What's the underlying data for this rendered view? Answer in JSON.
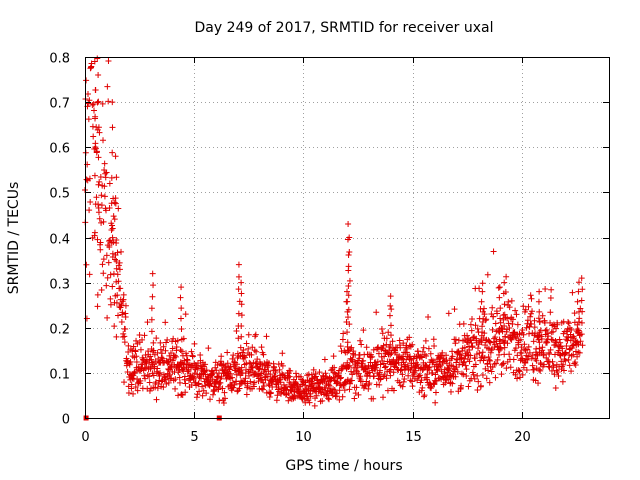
{
  "chart_data": {
    "type": "scatter",
    "title": "Day 249 of 2017, SRMTID for receiver uxal",
    "xlabel": "GPS time / hours",
    "ylabel": "SRMTID / TECUs",
    "xlim": [
      0,
      24
    ],
    "ylim": [
      0,
      0.8
    ],
    "x_ticks": [
      0,
      5,
      10,
      15,
      20
    ],
    "x_tick_labels": [
      "0",
      "5",
      "10",
      "15",
      "20"
    ],
    "y_ticks": [
      0,
      0.1,
      0.2,
      0.3,
      0.4,
      0.5,
      0.6,
      0.7,
      0.8
    ],
    "y_tick_labels": [
      "0",
      "0.1",
      "0.2",
      "0.3",
      "0.4",
      "0.5",
      "0.6",
      "0.7",
      "0.8"
    ],
    "grid": true,
    "marker_color": "#e00000",
    "axis_markers": [
      {
        "x": 0.05,
        "y": 0
      },
      {
        "x": 6.15,
        "y": 0
      }
    ],
    "envelope": [
      {
        "x": 0.0,
        "y": 0.58
      },
      {
        "x": 0.3,
        "y": 0.7
      },
      {
        "x": 0.6,
        "y": 0.55
      },
      {
        "x": 1.0,
        "y": 0.45
      },
      {
        "x": 1.5,
        "y": 0.3
      },
      {
        "x": 2.0,
        "y": 0.12
      },
      {
        "x": 3.0,
        "y": 0.11
      },
      {
        "x": 4.0,
        "y": 0.12
      },
      {
        "x": 5.0,
        "y": 0.1
      },
      {
        "x": 6.0,
        "y": 0.08
      },
      {
        "x": 7.0,
        "y": 0.1
      },
      {
        "x": 8.0,
        "y": 0.1
      },
      {
        "x": 9.0,
        "y": 0.08
      },
      {
        "x": 10.0,
        "y": 0.06
      },
      {
        "x": 11.0,
        "y": 0.07
      },
      {
        "x": 12.0,
        "y": 0.1
      },
      {
        "x": 13.0,
        "y": 0.11
      },
      {
        "x": 14.0,
        "y": 0.13
      },
      {
        "x": 15.0,
        "y": 0.12
      },
      {
        "x": 16.0,
        "y": 0.1
      },
      {
        "x": 17.0,
        "y": 0.12
      },
      {
        "x": 18.0,
        "y": 0.15
      },
      {
        "x": 19.0,
        "y": 0.17
      },
      {
        "x": 20.0,
        "y": 0.17
      },
      {
        "x": 21.0,
        "y": 0.16
      },
      {
        "x": 22.0,
        "y": 0.15
      },
      {
        "x": 22.7,
        "y": 0.18
      }
    ],
    "spikes": [
      {
        "x": 0.45,
        "y": 0.79
      },
      {
        "x": 0.6,
        "y": 0.76
      },
      {
        "x": 1.25,
        "y": 0.7
      },
      {
        "x": 1.4,
        "y": 0.58
      },
      {
        "x": 3.1,
        "y": 0.32
      },
      {
        "x": 4.4,
        "y": 0.29
      },
      {
        "x": 7.05,
        "y": 0.34
      },
      {
        "x": 7.15,
        "y": 0.3
      },
      {
        "x": 12.05,
        "y": 0.43
      },
      {
        "x": 12.1,
        "y": 0.4
      },
      {
        "x": 12.0,
        "y": 0.28
      },
      {
        "x": 14.0,
        "y": 0.27
      },
      {
        "x": 19.2,
        "y": 0.3
      },
      {
        "x": 19.0,
        "y": 0.29
      },
      {
        "x": 22.75,
        "y": 0.31
      },
      {
        "x": 22.6,
        "y": 0.28
      },
      {
        "x": 18.2,
        "y": 0.28
      },
      {
        "x": 20.8,
        "y": 0.28
      }
    ]
  }
}
